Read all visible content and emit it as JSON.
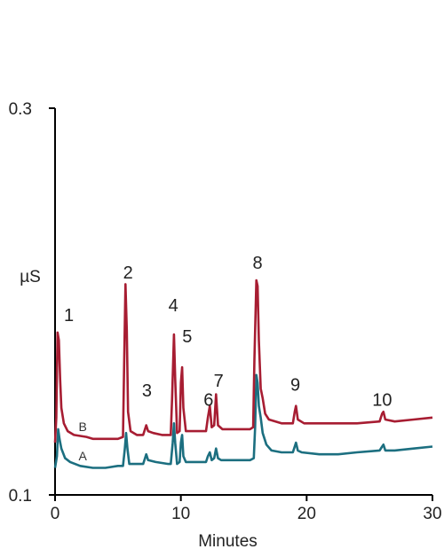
{
  "chart_data": {
    "type": "line",
    "xlabel": "Minutes",
    "ylabel": "µS",
    "xlim": [
      0,
      30
    ],
    "ylim": [
      0.1,
      0.3
    ],
    "x_ticks": [
      {
        "value": 0,
        "label": "0"
      },
      {
        "value": 10,
        "label": "10"
      },
      {
        "value": 20,
        "label": "20"
      },
      {
        "value": 30,
        "label": "30"
      }
    ],
    "y_ticks": [
      {
        "value": 0.1,
        "label": "0.1"
      },
      {
        "value": 0.3,
        "label": "0.3"
      }
    ],
    "grid": false,
    "series": [
      {
        "name": "A",
        "color": "#1c6f80",
        "points": [
          [
            0.0,
            0.114
          ],
          [
            0.15,
            0.12
          ],
          [
            0.25,
            0.134
          ],
          [
            0.35,
            0.129
          ],
          [
            0.5,
            0.124
          ],
          [
            0.8,
            0.119
          ],
          [
            1.2,
            0.117
          ],
          [
            2.0,
            0.115
          ],
          [
            3.0,
            0.114
          ],
          [
            4.0,
            0.114
          ],
          [
            5.0,
            0.115
          ],
          [
            5.4,
            0.115
          ],
          [
            5.55,
            0.124
          ],
          [
            5.65,
            0.132
          ],
          [
            5.75,
            0.124
          ],
          [
            5.9,
            0.116
          ],
          [
            6.2,
            0.116
          ],
          [
            7.0,
            0.116
          ],
          [
            7.15,
            0.119
          ],
          [
            7.25,
            0.121
          ],
          [
            7.4,
            0.118
          ],
          [
            8.0,
            0.117
          ],
          [
            9.0,
            0.116
          ],
          [
            9.2,
            0.116
          ],
          [
            9.35,
            0.127
          ],
          [
            9.45,
            0.137
          ],
          [
            9.55,
            0.127
          ],
          [
            9.7,
            0.116
          ],
          [
            9.9,
            0.117
          ],
          [
            10.0,
            0.127
          ],
          [
            10.1,
            0.131
          ],
          [
            10.2,
            0.12
          ],
          [
            10.4,
            0.117
          ],
          [
            11.0,
            0.117
          ],
          [
            12.0,
            0.117
          ],
          [
            12.15,
            0.12
          ],
          [
            12.3,
            0.122
          ],
          [
            12.45,
            0.118
          ],
          [
            12.65,
            0.119
          ],
          [
            12.8,
            0.124
          ],
          [
            12.95,
            0.119
          ],
          [
            13.2,
            0.118
          ],
          [
            14.5,
            0.118
          ],
          [
            15.5,
            0.118
          ],
          [
            15.8,
            0.119
          ],
          [
            15.9,
            0.135
          ],
          [
            16.0,
            0.162
          ],
          [
            16.1,
            0.158
          ],
          [
            16.2,
            0.146
          ],
          [
            16.35,
            0.14
          ],
          [
            16.5,
            0.132
          ],
          [
            16.8,
            0.126
          ],
          [
            17.2,
            0.123
          ],
          [
            18.0,
            0.122
          ],
          [
            18.9,
            0.122
          ],
          [
            19.05,
            0.125
          ],
          [
            19.15,
            0.127
          ],
          [
            19.3,
            0.123
          ],
          [
            19.6,
            0.122
          ],
          [
            21.0,
            0.121
          ],
          [
            22.5,
            0.121
          ],
          [
            24.0,
            0.122
          ],
          [
            25.8,
            0.123
          ],
          [
            26.0,
            0.125
          ],
          [
            26.1,
            0.126
          ],
          [
            26.25,
            0.123
          ],
          [
            27.0,
            0.123
          ],
          [
            28.5,
            0.124
          ],
          [
            30.0,
            0.125
          ]
        ]
      },
      {
        "name": "B",
        "color": "#a71d32",
        "points": [
          [
            0.0,
            0.127
          ],
          [
            0.1,
            0.14
          ],
          [
            0.2,
            0.184
          ],
          [
            0.3,
            0.18
          ],
          [
            0.4,
            0.16
          ],
          [
            0.5,
            0.145
          ],
          [
            0.7,
            0.137
          ],
          [
            1.0,
            0.133
          ],
          [
            1.5,
            0.131
          ],
          [
            2.5,
            0.13
          ],
          [
            3.0,
            0.129
          ],
          [
            4.0,
            0.129
          ],
          [
            5.0,
            0.129
          ],
          [
            5.4,
            0.13
          ],
          [
            5.5,
            0.17
          ],
          [
            5.6,
            0.209
          ],
          [
            5.7,
            0.185
          ],
          [
            5.8,
            0.143
          ],
          [
            6.0,
            0.133
          ],
          [
            6.5,
            0.131
          ],
          [
            7.0,
            0.131
          ],
          [
            7.15,
            0.134
          ],
          [
            7.25,
            0.136
          ],
          [
            7.4,
            0.133
          ],
          [
            7.8,
            0.132
          ],
          [
            8.5,
            0.131
          ],
          [
            9.2,
            0.131
          ],
          [
            9.3,
            0.15
          ],
          [
            9.45,
            0.183
          ],
          [
            9.55,
            0.16
          ],
          [
            9.7,
            0.132
          ],
          [
            9.9,
            0.133
          ],
          [
            10.0,
            0.158
          ],
          [
            10.1,
            0.166
          ],
          [
            10.2,
            0.145
          ],
          [
            10.4,
            0.133
          ],
          [
            11.0,
            0.133
          ],
          [
            12.0,
            0.133
          ],
          [
            12.15,
            0.14
          ],
          [
            12.3,
            0.146
          ],
          [
            12.45,
            0.135
          ],
          [
            12.65,
            0.136
          ],
          [
            12.8,
            0.152
          ],
          [
            12.95,
            0.136
          ],
          [
            13.3,
            0.134
          ],
          [
            14.5,
            0.134
          ],
          [
            15.5,
            0.134
          ],
          [
            15.75,
            0.135
          ],
          [
            15.85,
            0.17
          ],
          [
            16.0,
            0.211
          ],
          [
            16.1,
            0.208
          ],
          [
            16.2,
            0.18
          ],
          [
            16.35,
            0.155
          ],
          [
            16.5,
            0.15
          ],
          [
            16.7,
            0.142
          ],
          [
            17.0,
            0.139
          ],
          [
            18.0,
            0.137
          ],
          [
            18.9,
            0.137
          ],
          [
            19.05,
            0.143
          ],
          [
            19.15,
            0.146
          ],
          [
            19.3,
            0.139
          ],
          [
            19.8,
            0.137
          ],
          [
            21.0,
            0.137
          ],
          [
            22.5,
            0.137
          ],
          [
            24.0,
            0.137
          ],
          [
            25.8,
            0.138
          ],
          [
            26.0,
            0.142
          ],
          [
            26.1,
            0.143
          ],
          [
            26.25,
            0.139
          ],
          [
            27.0,
            0.138
          ],
          [
            28.5,
            0.139
          ],
          [
            30.0,
            0.14
          ]
        ]
      }
    ],
    "annotations": [
      {
        "text": "1",
        "x": 1.1,
        "y": 0.19
      },
      {
        "text": "2",
        "x": 5.8,
        "y": 0.212
      },
      {
        "text": "3",
        "x": 7.3,
        "y": 0.151
      },
      {
        "text": "4",
        "x": 9.4,
        "y": 0.195
      },
      {
        "text": "5",
        "x": 10.5,
        "y": 0.179
      },
      {
        "text": "6",
        "x": 12.2,
        "y": 0.146
      },
      {
        "text": "7",
        "x": 13.0,
        "y": 0.156
      },
      {
        "text": "8",
        "x": 16.1,
        "y": 0.217
      },
      {
        "text": "9",
        "x": 19.1,
        "y": 0.154
      },
      {
        "text": "10",
        "x": 26.0,
        "y": 0.146
      },
      {
        "text": "B",
        "x": 2.2,
        "y": 0.133
      },
      {
        "text": "A",
        "x": 2.2,
        "y": 0.118
      }
    ]
  }
}
